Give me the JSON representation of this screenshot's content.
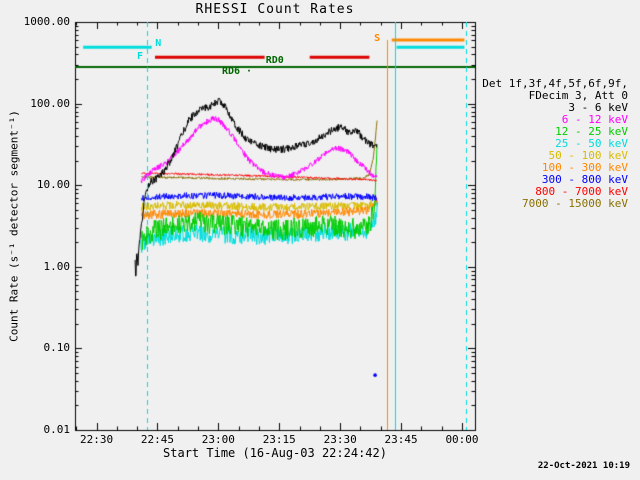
{
  "title": "RHESSI Count Rates",
  "timestamp": "22-Oct-2021 10:19",
  "colors": {
    "background": "#f0f0f0",
    "axis": "#000000"
  },
  "axes": {
    "x_label": "Start Time (16-Aug-03 22:24:42)",
    "y_label": "Count Rate (s⁻¹ detector segment⁻¹)",
    "y_ticks": [
      {
        "value": 1000,
        "label": "1000.00"
      },
      {
        "value": 100,
        "label": "100.00"
      },
      {
        "value": 10,
        "label": "10.00"
      },
      {
        "value": 1,
        "label": "1.00"
      },
      {
        "value": 0.1,
        "label": "0.10"
      },
      {
        "value": 0.01,
        "label": "0.01"
      }
    ],
    "x_ticks": [
      {
        "minutes": 5.3,
        "label": "22:30"
      },
      {
        "minutes": 20.3,
        "label": "22:45"
      },
      {
        "minutes": 35.3,
        "label": "23:00"
      },
      {
        "minutes": 50.3,
        "label": "23:15"
      },
      {
        "minutes": 65.3,
        "label": "23:30"
      },
      {
        "minutes": 80.3,
        "label": "23:45"
      },
      {
        "minutes": 95.3,
        "label": "00:00"
      }
    ]
  },
  "legend": {
    "header_line1": "Det 1f,3f,4f,5f,6f,9f,",
    "header_line2": "FDecim 3, Att 0",
    "entries": [
      {
        "label": "3 - 6 keV",
        "color": "#000000"
      },
      {
        "label": "6 - 12 keV",
        "color": "#ff00ff"
      },
      {
        "label": "12 - 25 keV",
        "color": "#00cc00"
      },
      {
        "label": "25 - 50 keV",
        "color": "#00dddd"
      },
      {
        "label": "50 - 100 keV",
        "color": "#d8bc00"
      },
      {
        "label": "100 - 300 keV",
        "color": "#ff8800"
      },
      {
        "label": "300 - 800 keV",
        "color": "#0000ff"
      },
      {
        "label": "800 - 7000 keV",
        "color": "#ff0000"
      },
      {
        "label": "7000 - 15000 keV",
        "color": "#8a7000"
      }
    ]
  },
  "chart_data": {
    "type": "line",
    "x_axis": {
      "unit": "minutes since 16-Aug-03 22:24:42",
      "range": [
        0,
        98.5
      ]
    },
    "y_axis": {
      "scale": "log",
      "range": [
        0.01,
        1000
      ]
    },
    "series": [
      {
        "name": "3 - 6 keV",
        "color": "#000000",
        "noise": 0.045,
        "points": [
          [
            14.8,
            1.1
          ],
          [
            15.0,
            0.65
          ],
          [
            15.2,
            1.6
          ],
          [
            15.5,
            1.1
          ],
          [
            15.9,
            2.0
          ],
          [
            16.4,
            3.2
          ],
          [
            17.0,
            6.0
          ],
          [
            17.7,
            9.0
          ],
          [
            18.5,
            11
          ],
          [
            20,
            12
          ],
          [
            22,
            15
          ],
          [
            24,
            22
          ],
          [
            26,
            38
          ],
          [
            28,
            62
          ],
          [
            30,
            80
          ],
          [
            32,
            88
          ],
          [
            34,
            97
          ],
          [
            35.5,
            108
          ],
          [
            36.5,
            98
          ],
          [
            37.5,
            82
          ],
          [
            38.5,
            68
          ],
          [
            40,
            50
          ],
          [
            42,
            38
          ],
          [
            44,
            33
          ],
          [
            46,
            30
          ],
          [
            48,
            28
          ],
          [
            50,
            27
          ],
          [
            52,
            28
          ],
          [
            54,
            30
          ],
          [
            56,
            31
          ],
          [
            58,
            33
          ],
          [
            60,
            37
          ],
          [
            62,
            43
          ],
          [
            64,
            49
          ],
          [
            65.5,
            52
          ],
          [
            67,
            46
          ],
          [
            68,
            43
          ],
          [
            69,
            46
          ],
          [
            70,
            43
          ],
          [
            71,
            38
          ],
          [
            72,
            34
          ],
          [
            73,
            31
          ],
          [
            74.3,
            29
          ]
        ]
      },
      {
        "name": "6 - 12 keV",
        "color": "#ff00ff",
        "noise": 0.035,
        "points": [
          [
            16.3,
            11
          ],
          [
            17.5,
            13
          ],
          [
            19,
            15
          ],
          [
            21,
            17
          ],
          [
            23,
            20
          ],
          [
            25,
            25
          ],
          [
            27,
            32
          ],
          [
            29,
            42
          ],
          [
            31,
            54
          ],
          [
            33,
            63
          ],
          [
            34.5,
            66
          ],
          [
            35.5,
            62
          ],
          [
            37,
            52
          ],
          [
            38.5,
            42
          ],
          [
            40,
            32
          ],
          [
            41.5,
            25
          ],
          [
            43,
            20
          ],
          [
            45,
            16
          ],
          [
            47,
            14
          ],
          [
            49,
            13
          ],
          [
            51,
            12.5
          ],
          [
            53,
            13
          ],
          [
            55,
            14.5
          ],
          [
            57,
            16.5
          ],
          [
            59,
            19
          ],
          [
            61,
            23
          ],
          [
            63,
            27
          ],
          [
            64.5,
            29
          ],
          [
            66,
            27.5
          ],
          [
            67.5,
            25
          ],
          [
            69,
            21
          ],
          [
            70.5,
            18
          ],
          [
            72,
            15
          ],
          [
            73,
            13.5
          ],
          [
            74.3,
            12.5
          ]
        ]
      },
      {
        "name": "12 - 25 keV",
        "color": "#00cc00",
        "noise": 0.13,
        "points": [
          [
            16.4,
            2.1
          ],
          [
            19,
            2.7
          ],
          [
            23,
            3.1
          ],
          [
            27,
            3.4
          ],
          [
            31,
            3.5
          ],
          [
            35,
            3.3
          ],
          [
            39,
            3.2
          ],
          [
            43,
            3.0
          ],
          [
            47,
            2.9
          ],
          [
            51,
            2.8
          ],
          [
            55,
            3.0
          ],
          [
            59,
            3.1
          ],
          [
            63,
            3.2
          ],
          [
            67,
            3.0
          ],
          [
            70,
            2.9
          ],
          [
            72.5,
            3.2
          ],
          [
            73.8,
            6
          ],
          [
            74.4,
            32
          ]
        ]
      },
      {
        "name": "25 - 50 keV",
        "color": "#00dddd",
        "noise": 0.11,
        "points": [
          [
            16.2,
            1.9
          ],
          [
            19,
            2.2
          ],
          [
            23,
            2.4
          ],
          [
            27,
            2.6
          ],
          [
            31,
            2.6
          ],
          [
            35,
            2.5
          ],
          [
            39,
            2.4
          ],
          [
            43,
            2.4
          ],
          [
            47,
            2.4
          ],
          [
            51,
            2.4
          ],
          [
            55,
            2.5
          ],
          [
            59,
            2.6
          ],
          [
            63,
            2.7
          ],
          [
            67,
            2.7
          ],
          [
            70,
            2.6
          ],
          [
            72.5,
            2.9
          ],
          [
            74.0,
            3.8
          ],
          [
            74.4,
            5.5
          ]
        ]
      },
      {
        "name": "50 - 100 keV",
        "color": "#d8bc00",
        "noise": 0.05,
        "points": [
          [
            16.4,
            5.4
          ],
          [
            25,
            5.7
          ],
          [
            35,
            5.6
          ],
          [
            45,
            5.4
          ],
          [
            55,
            5.4
          ],
          [
            65,
            5.5
          ],
          [
            72,
            5.6
          ],
          [
            74.3,
            6.2
          ]
        ]
      },
      {
        "name": "100 - 300 keV",
        "color": "#ff8800",
        "noise": 0.055,
        "points": [
          [
            16.4,
            4.3
          ],
          [
            25,
            4.5
          ],
          [
            35,
            4.5
          ],
          [
            45,
            4.4
          ],
          [
            55,
            4.4
          ],
          [
            65,
            4.6
          ],
          [
            72,
            4.9
          ],
          [
            73.5,
            5.5
          ],
          [
            74.4,
            6.5
          ]
        ]
      },
      {
        "name": "300 - 800 keV",
        "color": "#0000ff",
        "noise": 0.04,
        "points": [
          [
            16.4,
            7.0
          ],
          [
            25,
            7.4
          ],
          [
            35,
            7.5
          ],
          [
            45,
            7.2
          ],
          [
            55,
            7.0
          ],
          [
            65,
            7.3
          ],
          [
            72,
            7.2
          ],
          [
            74.3,
            7.0
          ]
        ]
      },
      {
        "name": "800 - 7000 keV",
        "color": "#ff0000",
        "noise": 0.012,
        "points": [
          [
            16.4,
            14.0
          ],
          [
            25,
            13.8
          ],
          [
            35,
            13.4
          ],
          [
            45,
            13.0
          ],
          [
            55,
            12.5
          ],
          [
            65,
            12.0
          ],
          [
            72,
            11.7
          ],
          [
            74.3,
            11.4
          ]
        ]
      },
      {
        "name": "7000 - 15000 keV",
        "color": "#8a7000",
        "noise": 0.014,
        "points": [
          [
            16.4,
            12.6
          ],
          [
            25,
            12.4
          ],
          [
            35,
            12.1
          ],
          [
            45,
            11.9
          ],
          [
            55,
            11.7
          ],
          [
            65,
            11.8
          ],
          [
            71,
            12.2
          ],
          [
            72.5,
            13.5
          ],
          [
            73.5,
            22
          ],
          [
            74.4,
            62
          ]
        ]
      }
    ],
    "flag_bars": [
      {
        "name": "night-bar-left",
        "color": "#00dddd",
        "t0": 2.0,
        "t1": 18.9,
        "value": 490,
        "width": 3
      },
      {
        "name": "night-bar-right",
        "color": "#00dddd",
        "t0": 79.2,
        "t1": 95.9,
        "value": 490,
        "width": 3
      },
      {
        "name": "saa-bar",
        "color": "#ff8800",
        "t0": 78.0,
        "t1": 95.9,
        "value": 600,
        "width": 3
      },
      {
        "name": "flag-bar-1",
        "color": "#dd0000",
        "t0": 19.7,
        "t1": 46.7,
        "value": 370,
        "width": 3
      },
      {
        "name": "flag-bar-2",
        "color": "#dd0000",
        "t0": 57.8,
        "t1": 72.5,
        "value": 370,
        "width": 3
      },
      {
        "name": "rd-line",
        "color": "#006600",
        "t0": 0.0,
        "t1": 98.5,
        "value": 280,
        "width": 2
      }
    ],
    "vlines": [
      {
        "t": 17.7,
        "color": "#00dddd",
        "dashed": true,
        "v_top": 1000,
        "v_bottom": 0.01
      },
      {
        "t": 76.8,
        "color": "#ff8800",
        "dashed": false,
        "v_top": 600,
        "v_bottom": 0.01
      },
      {
        "t": 78.8,
        "color": "#00dddd",
        "dashed": false,
        "v_top": 1000,
        "v_bottom": 0.01
      },
      {
        "t": 96.2,
        "color": "#00dddd",
        "dashed": true,
        "v_top": 1000,
        "v_bottom": 0.01
      }
    ],
    "annotations": [
      {
        "text": "N",
        "color": "#00dddd",
        "t": 20.5,
        "value": 540
      },
      {
        "text": "F",
        "color": "#00dddd",
        "t": 16.0,
        "value": 370
      },
      {
        "text": "RD0",
        "color": "#006600",
        "t": 49.2,
        "value": 330
      },
      {
        "text": "RD6 ·",
        "color": "#006600",
        "t": 39.9,
        "value": 245
      },
      {
        "text": "S",
        "color": "#ff8800",
        "t": 74.4,
        "value": 620
      }
    ],
    "markers": [
      {
        "t": 73.9,
        "value": 0.047,
        "color": "#0000ff"
      }
    ]
  }
}
